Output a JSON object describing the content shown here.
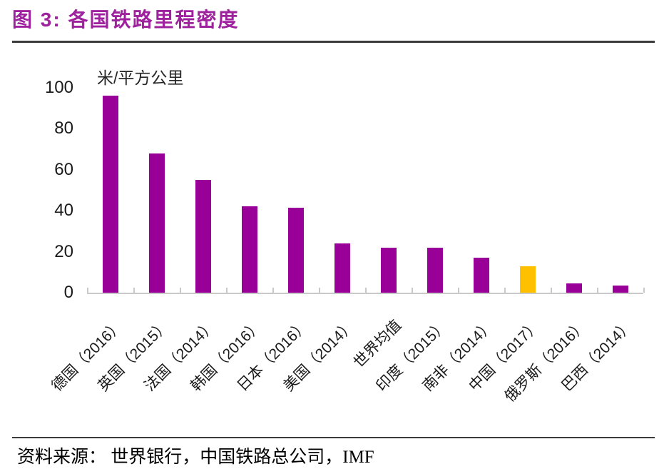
{
  "header": {
    "title": "图 3: 各国铁路里程密度"
  },
  "footer": {
    "source": "资料来源： 世界银行，中国铁路总公司，IMF"
  },
  "colors": {
    "title": "#9e219e",
    "bar": "#990098",
    "highlight": "#ffc000",
    "axis": "#c9c9c9",
    "rule": "#3b3b3b",
    "text": "#1a1a1a"
  },
  "chart_data": {
    "type": "bar",
    "title": "各国铁路里程密度",
    "unit_label": "米/平方公里",
    "xlabel": "",
    "ylabel": "米/平方公里",
    "categories": [
      "德国（2016）",
      "英国（2015）",
      "法国（2014）",
      "韩国（2016）",
      "日本（2016）",
      "美国（2014）",
      "世界均值",
      "印度（2015）",
      "南非（2014）",
      "中国（2017）",
      "俄罗斯（2016）",
      "巴西（2014）"
    ],
    "values": [
      96,
      68,
      55,
      42,
      41.5,
      24,
      22,
      22,
      17,
      13,
      4.5,
      3.5
    ],
    "highlight_index": 9,
    "highlight_category": "中国（2017）",
    "y_ticks": [
      0,
      20,
      40,
      60,
      80,
      100
    ],
    "ylim": [
      0,
      100
    ],
    "grid": "off",
    "legend": "none",
    "x_label_rotation_deg": 45
  }
}
